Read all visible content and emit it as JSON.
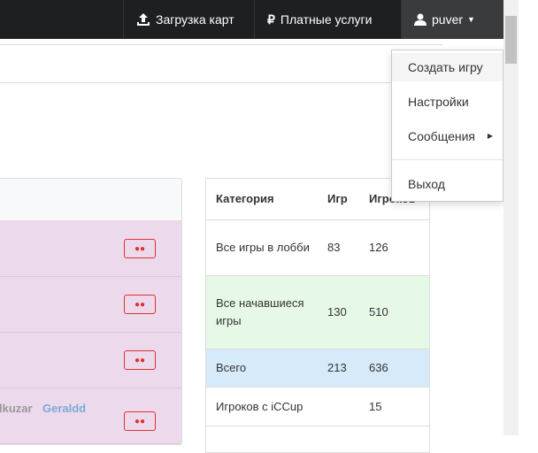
{
  "nav": {
    "upload": "Загрузка карт",
    "paid": "Платные услуги",
    "user": "puver"
  },
  "dropdown": {
    "items": [
      "Создать игру",
      "Настройки",
      "Сообщения",
      "Выход"
    ]
  },
  "games": {
    "players": [
      "lkuzar",
      "Geraldd"
    ]
  },
  "stats": {
    "headers": [
      "Категория",
      "Игр",
      "Игроков"
    ],
    "rows": [
      {
        "cat": "Все игры в лобби",
        "games": "83",
        "players": "126",
        "color": "#ffffff"
      },
      {
        "cat": "Все начавшиеся игры",
        "games": "130",
        "players": "510",
        "color": "#e6f8e6"
      },
      {
        "cat": "Всего",
        "games": "213",
        "players": "636",
        "color": "#d7eafa"
      },
      {
        "cat": "Игроков с iCCup",
        "games": "",
        "players": "15",
        "color": "#ffffff"
      }
    ]
  }
}
